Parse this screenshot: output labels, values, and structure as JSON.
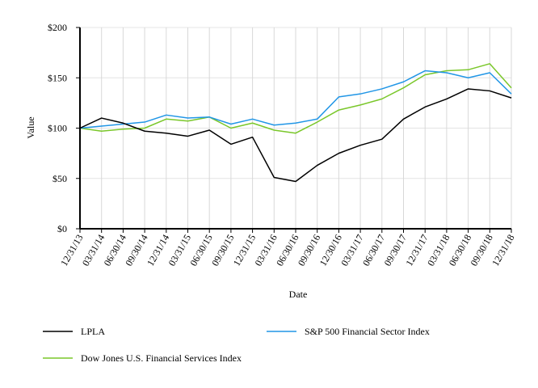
{
  "chart_data": {
    "type": "line",
    "title": "",
    "xlabel": "Date",
    "ylabel": "Value",
    "ylim": [
      0,
      200
    ],
    "yticks": [
      0,
      50,
      100,
      150,
      200
    ],
    "ytick_labels": [
      "$0",
      "$50",
      "$100",
      "$150",
      "$200"
    ],
    "grid": true,
    "legend_position": "bottom",
    "categories": [
      "12/31/13",
      "03/31/14",
      "06/30/14",
      "09/30/14",
      "12/31/14",
      "03/31/15",
      "06/30/15",
      "09/30/15",
      "12/31/15",
      "03/31/16",
      "06/30/16",
      "09/30/16",
      "12/30/16",
      "03/31/17",
      "06/30/17",
      "09/30/17",
      "12/31/17",
      "03/31/18",
      "06/30/18",
      "09/30/18",
      "12/31/18"
    ],
    "series": [
      {
        "name": "LPLA",
        "color": "#000000",
        "values": [
          100,
          110,
          105,
          97,
          95,
          92,
          98,
          84,
          91,
          51,
          47,
          63,
          75,
          83,
          89,
          109,
          121,
          129,
          139,
          137,
          130
        ]
      },
      {
        "name": "S&P 500 Financial Sector Index",
        "color": "#2196e6",
        "values": [
          100,
          102,
          104,
          106,
          113,
          110,
          111,
          104,
          109,
          103,
          105,
          109,
          131,
          134,
          139,
          146,
          157,
          155,
          150,
          155,
          134
        ]
      },
      {
        "name": "Dow Jones U.S. Financial Services Index",
        "color": "#7ac72a",
        "values": [
          100,
          97,
          99,
          100,
          109,
          107,
          111,
          100,
          105,
          98,
          95,
          106,
          118,
          123,
          129,
          140,
          153,
          157,
          158,
          164,
          140
        ]
      }
    ]
  }
}
